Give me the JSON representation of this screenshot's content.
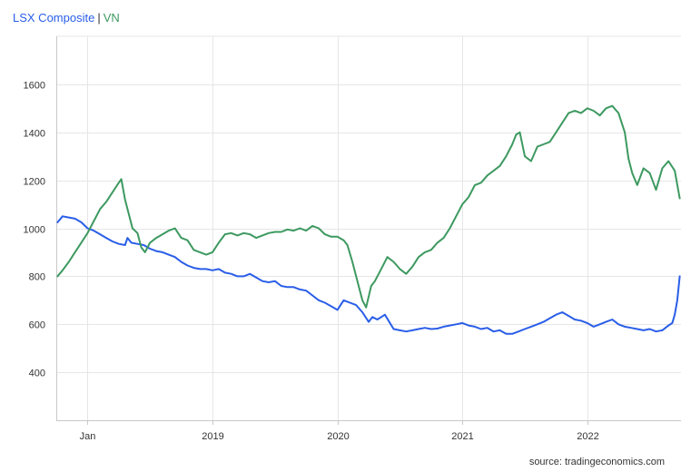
{
  "header": {
    "series1_label": "LSX Composite",
    "separator": "|",
    "series2_label": "VN"
  },
  "footer": {
    "source": "source: tradingeconomics.com"
  },
  "colors": {
    "lsx": "#2a5ee8",
    "vn": "#3d9960",
    "grid": "#e6e6e6",
    "axis": "#c8c8c8"
  },
  "chart_data": {
    "type": "line",
    "title": "LSX Composite | VN",
    "xlabel": "",
    "ylabel": "",
    "xlim": [
      2017.75,
      2022.75
    ],
    "ylim": [
      200,
      1800
    ],
    "y_ticks": [
      400,
      600,
      800,
      1000,
      1200,
      1400,
      1600
    ],
    "x_ticks": [
      {
        "label": "Jan",
        "value": 2018.0
      },
      {
        "label": "2019",
        "value": 2019.0
      },
      {
        "label": "2020",
        "value": 2020.0
      },
      {
        "label": "2021",
        "value": 2021.0
      },
      {
        "label": "2022",
        "value": 2022.0
      }
    ],
    "grid": true,
    "series": [
      {
        "name": "LSX Composite",
        "color": "#2a5ee8",
        "points": [
          [
            2017.76,
            1025
          ],
          [
            2017.8,
            1050
          ],
          [
            2017.85,
            1045
          ],
          [
            2017.9,
            1040
          ],
          [
            2017.95,
            1025
          ],
          [
            2018.0,
            1000
          ],
          [
            2018.05,
            990
          ],
          [
            2018.1,
            975
          ],
          [
            2018.15,
            960
          ],
          [
            2018.2,
            945
          ],
          [
            2018.25,
            935
          ],
          [
            2018.3,
            930
          ],
          [
            2018.32,
            960
          ],
          [
            2018.35,
            940
          ],
          [
            2018.4,
            935
          ],
          [
            2018.45,
            930
          ],
          [
            2018.5,
            915
          ],
          [
            2018.55,
            905
          ],
          [
            2018.6,
            900
          ],
          [
            2018.65,
            890
          ],
          [
            2018.7,
            880
          ],
          [
            2018.75,
            860
          ],
          [
            2018.8,
            845
          ],
          [
            2018.85,
            835
          ],
          [
            2018.9,
            830
          ],
          [
            2018.95,
            830
          ],
          [
            2019.0,
            825
          ],
          [
            2019.05,
            830
          ],
          [
            2019.1,
            815
          ],
          [
            2019.15,
            810
          ],
          [
            2019.2,
            800
          ],
          [
            2019.25,
            800
          ],
          [
            2019.3,
            810
          ],
          [
            2019.35,
            795
          ],
          [
            2019.4,
            780
          ],
          [
            2019.45,
            775
          ],
          [
            2019.5,
            780
          ],
          [
            2019.55,
            760
          ],
          [
            2019.6,
            755
          ],
          [
            2019.65,
            755
          ],
          [
            2019.7,
            745
          ],
          [
            2019.75,
            740
          ],
          [
            2019.8,
            720
          ],
          [
            2019.85,
            700
          ],
          [
            2019.9,
            690
          ],
          [
            2019.95,
            675
          ],
          [
            2020.0,
            660
          ],
          [
            2020.05,
            700
          ],
          [
            2020.1,
            690
          ],
          [
            2020.15,
            680
          ],
          [
            2020.2,
            650
          ],
          [
            2020.25,
            610
          ],
          [
            2020.28,
            630
          ],
          [
            2020.32,
            620
          ],
          [
            2020.38,
            640
          ],
          [
            2020.45,
            580
          ],
          [
            2020.5,
            575
          ],
          [
            2020.55,
            570
          ],
          [
            2020.6,
            575
          ],
          [
            2020.65,
            580
          ],
          [
            2020.7,
            585
          ],
          [
            2020.75,
            580
          ],
          [
            2020.8,
            582
          ],
          [
            2020.85,
            590
          ],
          [
            2020.9,
            595
          ],
          [
            2020.95,
            600
          ],
          [
            2021.0,
            605
          ],
          [
            2021.05,
            595
          ],
          [
            2021.1,
            590
          ],
          [
            2021.15,
            580
          ],
          [
            2021.2,
            585
          ],
          [
            2021.25,
            570
          ],
          [
            2021.3,
            575
          ],
          [
            2021.35,
            560
          ],
          [
            2021.4,
            560
          ],
          [
            2021.45,
            570
          ],
          [
            2021.5,
            580
          ],
          [
            2021.55,
            590
          ],
          [
            2021.6,
            600
          ],
          [
            2021.65,
            610
          ],
          [
            2021.7,
            625
          ],
          [
            2021.75,
            640
          ],
          [
            2021.8,
            650
          ],
          [
            2021.85,
            635
          ],
          [
            2021.9,
            620
          ],
          [
            2021.95,
            615
          ],
          [
            2022.0,
            605
          ],
          [
            2022.05,
            590
          ],
          [
            2022.1,
            600
          ],
          [
            2022.15,
            610
          ],
          [
            2022.2,
            620
          ],
          [
            2022.25,
            600
          ],
          [
            2022.3,
            590
          ],
          [
            2022.35,
            585
          ],
          [
            2022.4,
            580
          ],
          [
            2022.45,
            575
          ],
          [
            2022.5,
            580
          ],
          [
            2022.55,
            570
          ],
          [
            2022.6,
            575
          ],
          [
            2022.65,
            595
          ],
          [
            2022.68,
            605
          ],
          [
            2022.7,
            640
          ],
          [
            2022.72,
            700
          ],
          [
            2022.74,
            800
          ]
        ]
      },
      {
        "name": "VN",
        "color": "#3d9960",
        "points": [
          [
            2017.76,
            800
          ],
          [
            2017.8,
            825
          ],
          [
            2017.85,
            860
          ],
          [
            2017.9,
            900
          ],
          [
            2017.95,
            940
          ],
          [
            2018.0,
            980
          ],
          [
            2018.05,
            1030
          ],
          [
            2018.1,
            1080
          ],
          [
            2018.15,
            1110
          ],
          [
            2018.2,
            1150
          ],
          [
            2018.25,
            1190
          ],
          [
            2018.27,
            1205
          ],
          [
            2018.3,
            1120
          ],
          [
            2018.33,
            1060
          ],
          [
            2018.36,
            1000
          ],
          [
            2018.4,
            980
          ],
          [
            2018.43,
            920
          ],
          [
            2018.46,
            900
          ],
          [
            2018.5,
            940
          ],
          [
            2018.55,
            960
          ],
          [
            2018.6,
            975
          ],
          [
            2018.65,
            990
          ],
          [
            2018.7,
            1000
          ],
          [
            2018.75,
            960
          ],
          [
            2018.8,
            950
          ],
          [
            2018.85,
            910
          ],
          [
            2018.9,
            900
          ],
          [
            2018.95,
            890
          ],
          [
            2019.0,
            900
          ],
          [
            2019.05,
            940
          ],
          [
            2019.1,
            975
          ],
          [
            2019.15,
            980
          ],
          [
            2019.2,
            970
          ],
          [
            2019.25,
            980
          ],
          [
            2019.3,
            975
          ],
          [
            2019.35,
            960
          ],
          [
            2019.4,
            970
          ],
          [
            2019.45,
            980
          ],
          [
            2019.5,
            985
          ],
          [
            2019.55,
            985
          ],
          [
            2019.6,
            995
          ],
          [
            2019.65,
            990
          ],
          [
            2019.7,
            1000
          ],
          [
            2019.75,
            990
          ],
          [
            2019.8,
            1010
          ],
          [
            2019.85,
            1000
          ],
          [
            2019.9,
            975
          ],
          [
            2019.95,
            965
          ],
          [
            2020.0,
            965
          ],
          [
            2020.05,
            950
          ],
          [
            2020.08,
            930
          ],
          [
            2020.12,
            860
          ],
          [
            2020.16,
            780
          ],
          [
            2020.2,
            700
          ],
          [
            2020.23,
            670
          ],
          [
            2020.27,
            760
          ],
          [
            2020.3,
            780
          ],
          [
            2020.35,
            830
          ],
          [
            2020.4,
            880
          ],
          [
            2020.45,
            860
          ],
          [
            2020.5,
            830
          ],
          [
            2020.55,
            810
          ],
          [
            2020.6,
            840
          ],
          [
            2020.65,
            880
          ],
          [
            2020.7,
            900
          ],
          [
            2020.75,
            910
          ],
          [
            2020.8,
            940
          ],
          [
            2020.85,
            960
          ],
          [
            2020.9,
            1000
          ],
          [
            2020.95,
            1050
          ],
          [
            2021.0,
            1100
          ],
          [
            2021.05,
            1130
          ],
          [
            2021.1,
            1180
          ],
          [
            2021.15,
            1190
          ],
          [
            2021.2,
            1220
          ],
          [
            2021.25,
            1240
          ],
          [
            2021.3,
            1260
          ],
          [
            2021.35,
            1300
          ],
          [
            2021.4,
            1350
          ],
          [
            2021.43,
            1390
          ],
          [
            2021.46,
            1400
          ],
          [
            2021.5,
            1300
          ],
          [
            2021.55,
            1280
          ],
          [
            2021.6,
            1340
          ],
          [
            2021.65,
            1350
          ],
          [
            2021.7,
            1360
          ],
          [
            2021.75,
            1400
          ],
          [
            2021.8,
            1440
          ],
          [
            2021.85,
            1480
          ],
          [
            2021.9,
            1490
          ],
          [
            2021.95,
            1480
          ],
          [
            2022.0,
            1500
          ],
          [
            2022.05,
            1490
          ],
          [
            2022.1,
            1470
          ],
          [
            2022.15,
            1500
          ],
          [
            2022.2,
            1510
          ],
          [
            2022.25,
            1480
          ],
          [
            2022.3,
            1400
          ],
          [
            2022.33,
            1290
          ],
          [
            2022.36,
            1230
          ],
          [
            2022.4,
            1180
          ],
          [
            2022.45,
            1250
          ],
          [
            2022.5,
            1230
          ],
          [
            2022.55,
            1160
          ],
          [
            2022.6,
            1250
          ],
          [
            2022.65,
            1280
          ],
          [
            2022.7,
            1240
          ],
          [
            2022.74,
            1125
          ]
        ]
      }
    ]
  }
}
